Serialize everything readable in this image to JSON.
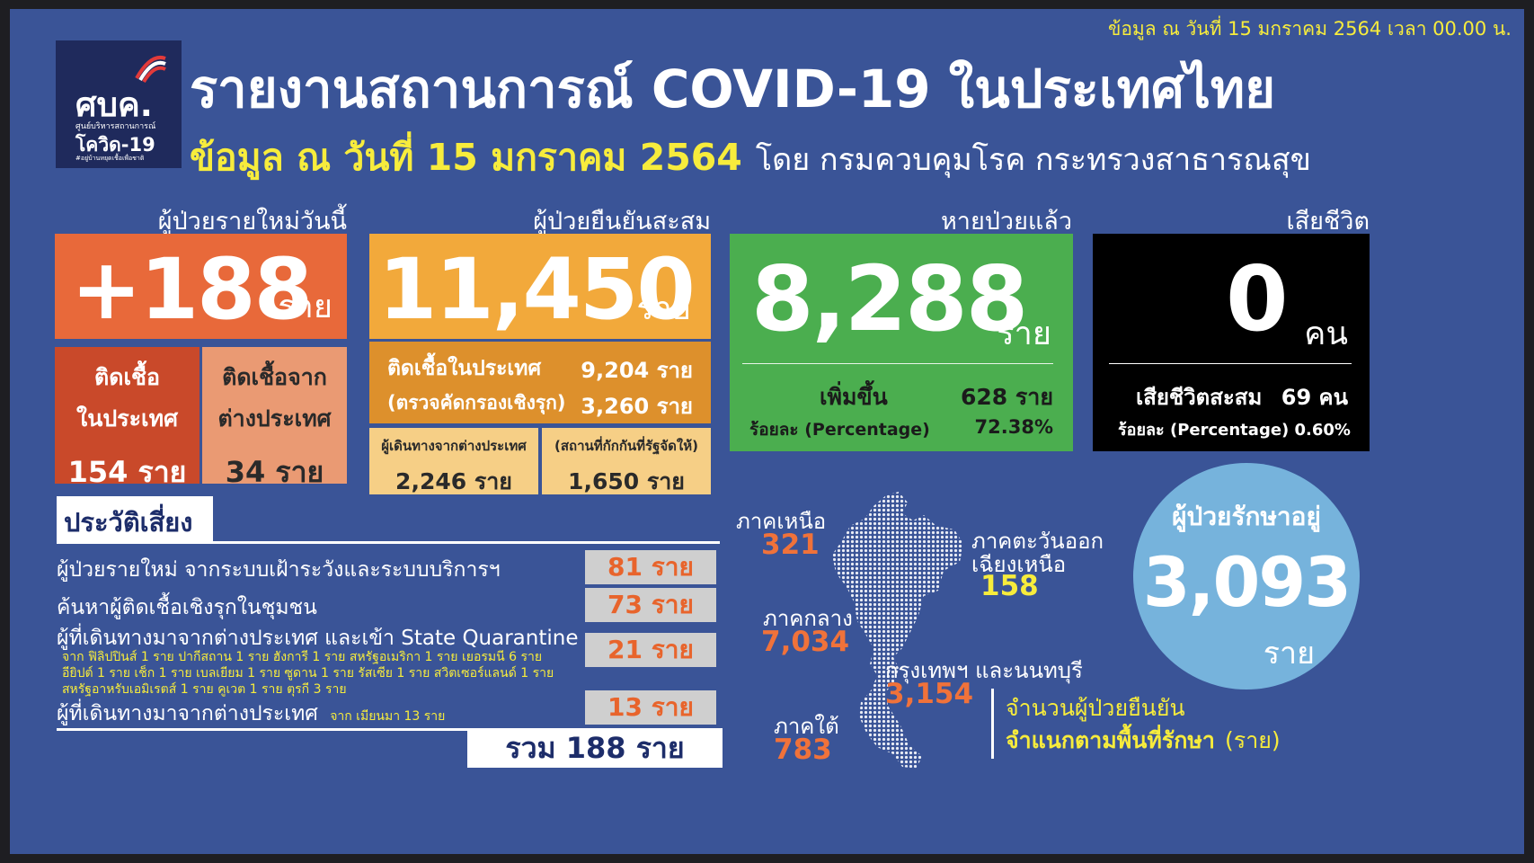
{
  "corner_date": "ข้อมูล ณ วันที่ 15 มกราคม 2564 เวลา 00.00 น.",
  "logo": {
    "main": "ศบค.",
    "line1": "ศูนย์บริหารสถานการณ์",
    "line2": "โควิด-19",
    "line3": "#อยู่บ้านหยุดเชื้อเพื่อชาติ"
  },
  "title": "รายงานสถานการณ์ COVID-19 ในประเทศไทย",
  "subtitle_date": "ข้อมูล ณ วันที่ 15 มกราคม 2564",
  "subtitle_source": "โดย กรมควบคุมโรค กระทรวงสาธารณสุข",
  "new_cases": {
    "label": "ผู้ป่วยรายใหม่วันนี้",
    "value": "+188",
    "unit": "ราย",
    "domestic_label_1": "ติดเชื้อ",
    "domestic_label_2": "ในประเทศ",
    "domestic_value": "154 ราย",
    "imported_label_1": "ติดเชื้อจาก",
    "imported_label_2": "ต่างประเทศ",
    "imported_value": "34 ราย"
  },
  "cumulative": {
    "label": "ผู้ป่วยยืนยันสะสม",
    "value": "11,450",
    "unit": "ราย",
    "domestic_label": "ติดเชื้อในประเทศ",
    "domestic_value": "9,204 ราย",
    "active_label": "(ตรวจคัดกรองเชิงรุก)",
    "active_value": "3,260 ราย",
    "travelers_label": "ผู้เดินทางจากต่างประเทศ",
    "travelers_value": "2,246 ราย",
    "quarantine_label": "(สถานที่กักกันที่รัฐจัดให้)",
    "quarantine_value": "1,650 ราย"
  },
  "recovered": {
    "label": "หายป่วยแล้ว",
    "value": "8,288",
    "unit": "ราย",
    "increase_label": "เพิ่มขึ้น",
    "increase_value": "628 ราย",
    "pct_label": "ร้อยละ (Percentage)",
    "pct_value": "72.38%"
  },
  "deaths": {
    "label": "เสียชีวิต",
    "value": "0",
    "unit": "คน",
    "cum_label": "เสียชีวิตสะสม",
    "cum_value": "69 คน",
    "pct_text": "ร้อยละ (Percentage) 0.60%"
  },
  "risk": {
    "title": "ประวัติเสี่ยง",
    "rows": [
      {
        "label": "ผู้ป่วยรายใหม่ จากระบบเฝ้าระวังและระบบบริการฯ",
        "value": "81 ราย"
      },
      {
        "label": "ค้นหาผู้ติดเชื้อเชิงรุกในชุมชน",
        "value": "73 ราย"
      },
      {
        "label": "ผู้ที่เดินทางมาจากต่างประเทศ และเข้า State Quarantine",
        "value": "21 ราย",
        "detail_1": "จาก ฟิลิปปินส์ 1 ราย ปากีสถาน 1 ราย ฮังการี 1 ราย สหรัฐอเมริกา 1 ราย เยอรมนี 6 ราย",
        "detail_2": "อียิปต์ 1 ราย เช็ก 1 ราย เบลเยียม 1 ราย ซูดาน 1 ราย รัสเซีย 1 ราย สวิตเซอร์แลนด์ 1 ราย",
        "detail_3": "สหรัฐอาหรับเอมิเรตส์ 1 ราย คูเวต 1 ราย ตุรกี 3 ราย"
      },
      {
        "label": "ผู้ที่เดินทางมาจากต่างประเทศ",
        "detail": "จาก เมียนมา 13 ราย",
        "value": "13 ราย"
      }
    ],
    "total": "รวม 188 ราย"
  },
  "regions": {
    "north": {
      "name": "ภาคเหนือ",
      "value": "321"
    },
    "northeast": {
      "name_1": "ภาคตะวันออก",
      "name_2": "เฉียงเหนือ",
      "value": "158"
    },
    "central": {
      "name": "ภาคกลาง",
      "value": "7,034"
    },
    "bangkok": {
      "name": "กรุงเทพฯ และนนทบุรี",
      "value": "3,154"
    },
    "south": {
      "name": "ภาคใต้",
      "value": "783"
    }
  },
  "treating": {
    "label": "ผู้ป่วยรักษาอยู่",
    "value": "3,093",
    "unit": "ราย"
  },
  "map_caption": {
    "line1": "จำนวนผู้ป่วยยืนยัน",
    "line2_bold": "จำแนกตามพื้นที่รักษา",
    "line2_unit": "(ราย)"
  },
  "colors": {
    "background": "#3a5497",
    "orange": "#e8693a",
    "amber": "#f2a93b",
    "green": "#4bae4f",
    "black": "#000000",
    "circle": "#76b3dc",
    "yellow": "#f7ec3c"
  }
}
